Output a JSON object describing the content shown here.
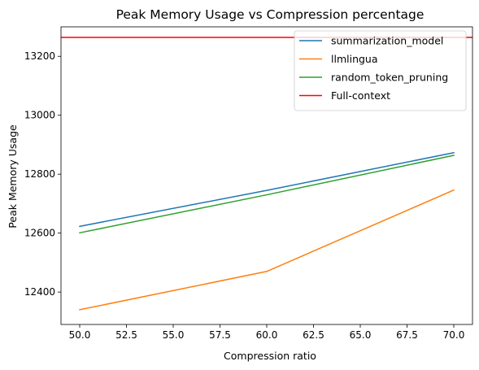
{
  "chart_data": {
    "type": "line",
    "title": "Peak Memory Usage vs Compression percentage",
    "xlabel": "Compression ratio",
    "ylabel": "Peak Memory Usage",
    "xlim": [
      49,
      71
    ],
    "ylim": [
      12290,
      13300
    ],
    "xticks": [
      50.0,
      52.5,
      55.0,
      57.5,
      60.0,
      62.5,
      65.0,
      67.5,
      70.0
    ],
    "xtick_labels": [
      "50.0",
      "52.5",
      "55.0",
      "57.5",
      "60.0",
      "62.5",
      "65.0",
      "67.5",
      "70.0"
    ],
    "yticks": [
      12400,
      12600,
      12800,
      13000,
      13200
    ],
    "ytick_labels": [
      "12400",
      "12600",
      "12800",
      "13000",
      "13200"
    ],
    "grid": false,
    "legend_position": "top-right",
    "series": [
      {
        "name": "summarization_model",
        "color": "#1f77b4",
        "x": [
          50,
          60,
          70
        ],
        "values": [
          12623,
          12745,
          12873
        ]
      },
      {
        "name": "llmlingua",
        "color": "#ff7f0e",
        "x": [
          50,
          60,
          70
        ],
        "values": [
          12340,
          12470,
          12746
        ]
      },
      {
        "name": "random_token_pruning",
        "color": "#2ca02c",
        "x": [
          50,
          60,
          70
        ],
        "values": [
          12601,
          12730,
          12864
        ]
      }
    ],
    "hlines": [
      {
        "name": "Full-context",
        "color": "#ff0000",
        "value": 13264
      }
    ]
  }
}
